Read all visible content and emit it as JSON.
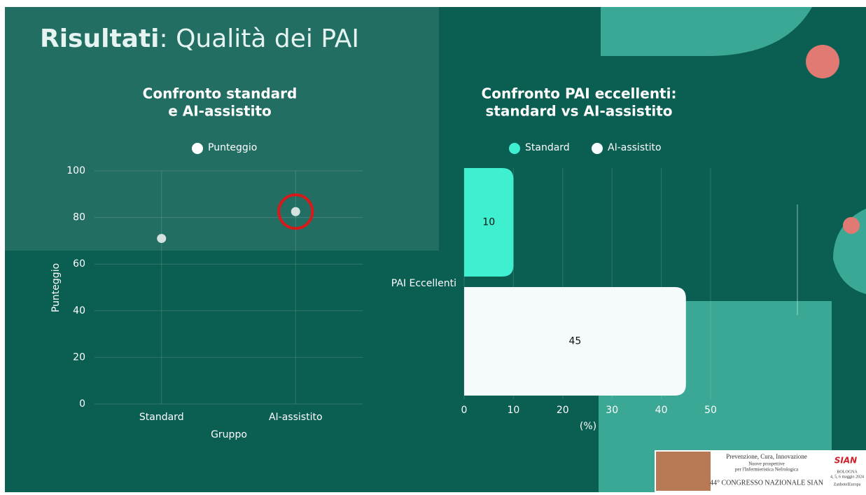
{
  "slide_title": {
    "bold": "Risultati",
    "rest": ": Qualità dei PAI"
  },
  "chart_data": [
    {
      "type": "scatter",
      "title": [
        "Confronto standard",
        "e AI-assistito"
      ],
      "categories": [
        "Standard",
        "AI-assistito"
      ],
      "series": [
        {
          "name": "Punteggio",
          "color": "#d5e3e0",
          "values": [
            71,
            82.5
          ]
        }
      ],
      "xlabel": "Gruppo",
      "ylabel": "Punteggio",
      "ylim": [
        0,
        100
      ],
      "yticks": [
        0,
        20,
        40,
        60,
        80,
        100
      ],
      "grid": true,
      "highlight_color": "#d61a1a"
    },
    {
      "type": "hbar",
      "title": [
        "Confronto PAI eccellenti:",
        "standard vs AI-assistito"
      ],
      "categories": [
        "PAI Eccellenti"
      ],
      "series": [
        {
          "name": "Standard",
          "color": "#3ef0cf",
          "values": [
            10
          ]
        },
        {
          "name": "AI-assistito",
          "color": "#f5fbfb",
          "values": [
            45
          ]
        }
      ],
      "xlabel": "(%)",
      "xlim": [
        0,
        50
      ],
      "xticks": [
        0,
        10,
        20,
        30,
        40,
        50
      ],
      "grid": true
    }
  ],
  "footer": {
    "lines": [
      "Prevenzione, Cura, Innovazione",
      "Nuove prospettive",
      "per l'Infermieristica Nefrologica"
    ],
    "congress": "44° CONGRESSO NAZIONALE SIAN",
    "brand": "SIAN",
    "city": "BOLOGNA",
    "dates": "4, 5, 6 maggio 2024",
    "venue": "ZanhotelEuropa"
  }
}
